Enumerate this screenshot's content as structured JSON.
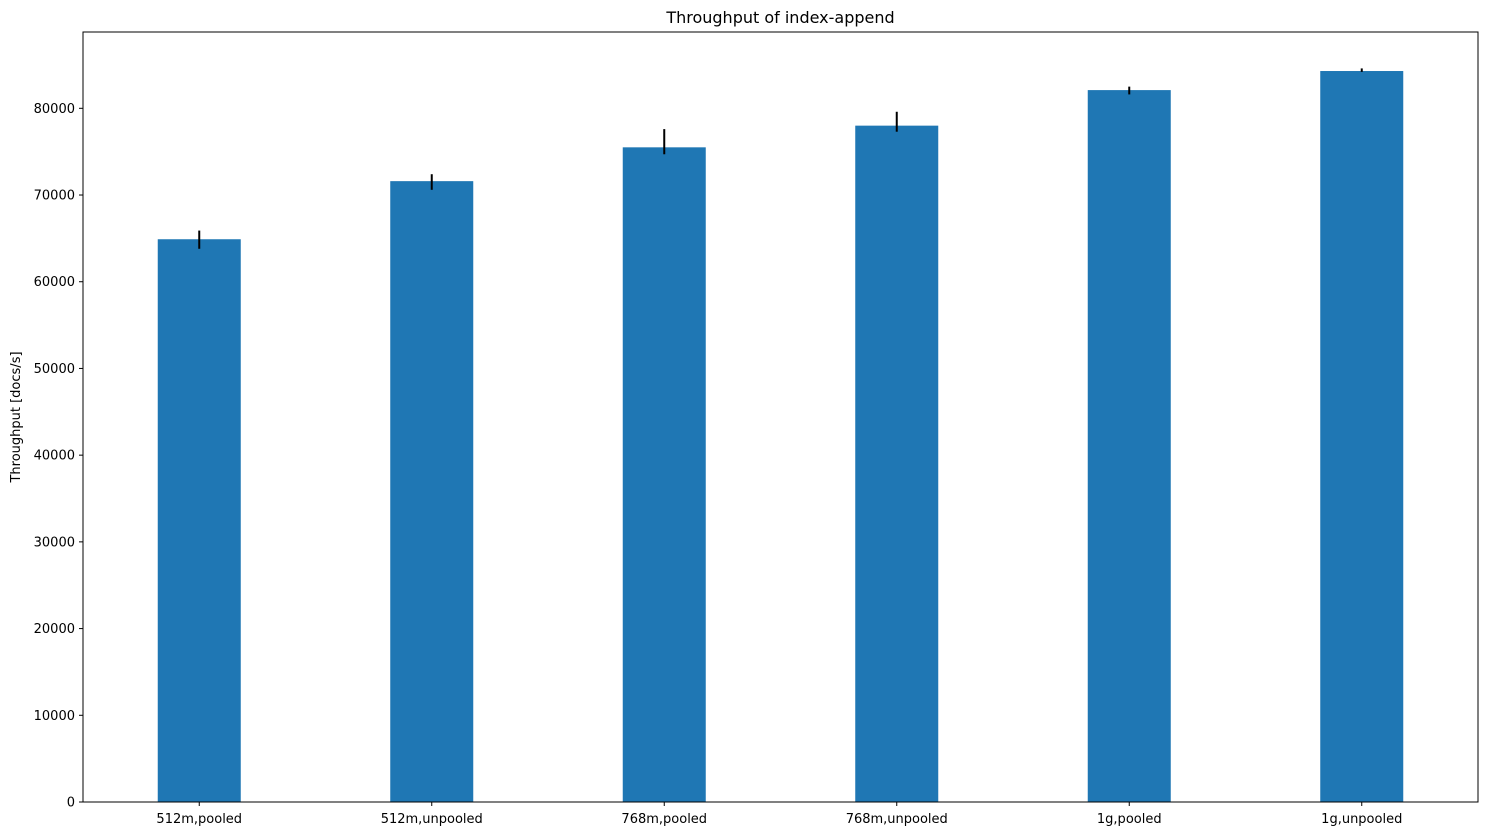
{
  "chart_data": {
    "type": "bar",
    "title": "Throughput of index-append",
    "xlabel": "",
    "ylabel": "Throughput [docs/s]",
    "categories": [
      "512m,pooled",
      "512m,unpooled",
      "768m,pooled",
      "768m,unpooled",
      "1g,pooled",
      "1g,unpooled"
    ],
    "values": [
      64900,
      71600,
      75500,
      78000,
      82100,
      84300
    ],
    "error_low": [
      1100,
      1000,
      800,
      700,
      500,
      100
    ],
    "error_high": [
      1000,
      800,
      2100,
      1600,
      400,
      300
    ],
    "ylim": [
      0,
      88800
    ],
    "yticks": [
      0,
      10000,
      20000,
      30000,
      40000,
      50000,
      60000,
      70000,
      80000
    ],
    "grid": false,
    "colors": {
      "bar": "#1f77b4",
      "error_bar": "#000000",
      "axis": "#000000"
    }
  }
}
